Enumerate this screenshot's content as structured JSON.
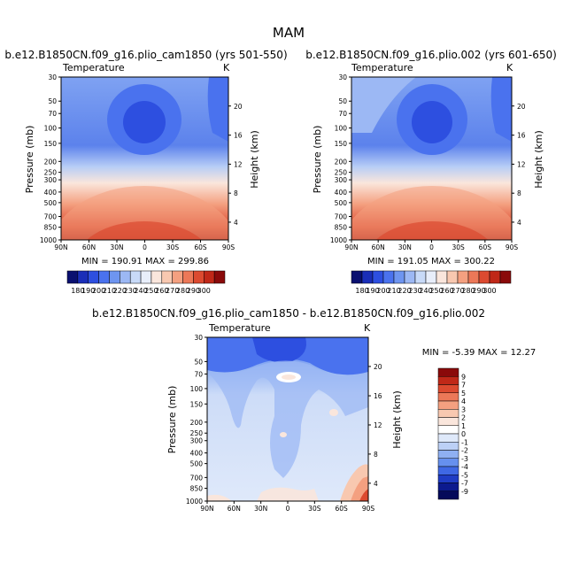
{
  "figure_title": "MAM",
  "chart_data": [
    {
      "type": "heatmap",
      "id": "p1",
      "title": "b.e12.B1850CN.f09_g16.plio_cam1850 (yrs 501-550)",
      "subtitle": "Temperature",
      "units": "K",
      "xlabel": "",
      "ylabel": "Pressure (mb)",
      "y2label": "Height (km)",
      "x_ticks": [
        "90N",
        "60N",
        "30N",
        "0",
        "30S",
        "60S",
        "90S"
      ],
      "y_ticks": [
        "30",
        "50",
        "70",
        "100",
        "150",
        "200",
        "250",
        "300",
        "400",
        "500",
        "700",
        "850",
        "1000"
      ],
      "y2_ticks": [
        "20",
        "16",
        "12",
        "8",
        "4"
      ],
      "stats": "MIN = 190.91   MAX = 299.86",
      "colorbar": {
        "orientation": "horizontal",
        "labels": [
          "180",
          "190",
          "200",
          "210",
          "220",
          "230",
          "240",
          "250",
          "260",
          "270",
          "280",
          "290",
          "300"
        ],
        "colors": [
          "#0a1070",
          "#1a2eb8",
          "#2d4fe0",
          "#4a72ee",
          "#6e95f0",
          "#9cb8f4",
          "#c8daf8",
          "#e8eefa",
          "#fae6dc",
          "#f8c8b0",
          "#f4a080",
          "#ec7858",
          "#dc4a30",
          "#c02818",
          "#8a0a0a"
        ]
      }
    },
    {
      "type": "heatmap",
      "id": "p2",
      "title": "b.e12.B1850CN.f09_g16.plio.002 (yrs 601-650)",
      "subtitle": "Temperature",
      "units": "K",
      "xlabel": "",
      "ylabel": "Pressure (mb)",
      "y2label": "Height (km)",
      "x_ticks": [
        "90N",
        "60N",
        "30N",
        "0",
        "30S",
        "60S",
        "90S"
      ],
      "y_ticks": [
        "30",
        "50",
        "70",
        "100",
        "150",
        "200",
        "250",
        "300",
        "400",
        "500",
        "700",
        "850",
        "1000"
      ],
      "y2_ticks": [
        "20",
        "16",
        "12",
        "8",
        "4"
      ],
      "stats": "MIN = 191.05   MAX = 300.22",
      "colorbar": {
        "orientation": "horizontal",
        "labels": [
          "180",
          "190",
          "200",
          "210",
          "220",
          "230",
          "240",
          "250",
          "260",
          "270",
          "280",
          "290",
          "300"
        ],
        "colors": [
          "#0a1070",
          "#1a2eb8",
          "#2d4fe0",
          "#4a72ee",
          "#6e95f0",
          "#9cb8f4",
          "#c8daf8",
          "#e8eefa",
          "#fae6dc",
          "#f8c8b0",
          "#f4a080",
          "#ec7858",
          "#dc4a30",
          "#c02818",
          "#8a0a0a"
        ]
      }
    },
    {
      "type": "heatmap",
      "id": "p3",
      "title": "b.e12.B1850CN.f09_g16.plio_cam1850 - b.e12.B1850CN.f09_g16.plio.002",
      "subtitle": "Temperature",
      "units": "K",
      "xlabel": "",
      "ylabel": "Pressure (mb)",
      "y2label": "Height (km)",
      "x_ticks": [
        "90N",
        "60N",
        "30N",
        "0",
        "30S",
        "60S",
        "90S"
      ],
      "y_ticks": [
        "30",
        "50",
        "70",
        "100",
        "150",
        "200",
        "250",
        "300",
        "400",
        "500",
        "700",
        "850",
        "1000"
      ],
      "y2_ticks": [
        "20",
        "16",
        "12",
        "8",
        "4"
      ],
      "stats": "MIN =   -5.39   MAX =   12.27",
      "colorbar": {
        "orientation": "vertical",
        "labels": [
          "9",
          "7",
          "5",
          "4",
          "3",
          "2",
          "1",
          "0",
          "-1",
          "-2",
          "-3",
          "-4",
          "-5",
          "-7",
          "-9"
        ],
        "colors": [
          "#8a0a0a",
          "#c02818",
          "#dc4a30",
          "#ec7858",
          "#f4a080",
          "#f8c8b0",
          "#fae6dc",
          "#ffffff",
          "#dfe9fa",
          "#bcd0f6",
          "#8fb0f2",
          "#6690ee",
          "#3f68e4",
          "#1f3cc4",
          "#0c1a8e",
          "#050a5a"
        ]
      }
    }
  ]
}
